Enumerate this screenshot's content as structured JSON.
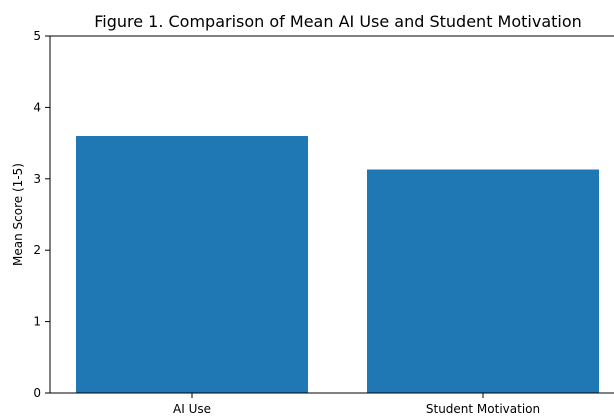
{
  "chart_data": {
    "type": "bar",
    "title": "Figure 1. Comparison of Mean AI Use and Student Motivation",
    "xlabel": "",
    "ylabel": "Mean Score (1-5)",
    "categories": [
      "AI Use",
      "Student Motivation"
    ],
    "values": [
      3.6,
      3.13
    ],
    "ylim": [
      0,
      5
    ],
    "yticks": [
      "0",
      "1",
      "2",
      "3",
      "4",
      "5"
    ],
    "bar_color": "#1f77b4",
    "grid": false,
    "legend": "none"
  }
}
